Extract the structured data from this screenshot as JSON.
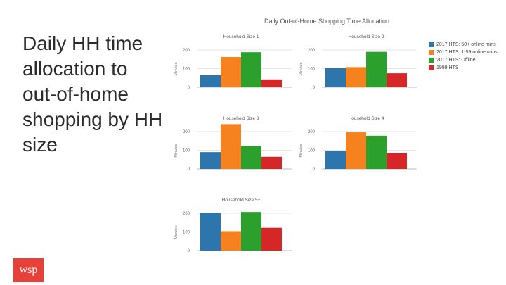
{
  "slide": {
    "title": "Daily HH time allocation to out-of-home shopping by HH size",
    "logo_text": "wsp"
  },
  "figure": {
    "title": "Daily Out-of-Home Shopping Time Allocation"
  },
  "legend": [
    {
      "label": "2017 HTS: 50+ online mins",
      "color": "#2c75ad"
    },
    {
      "label": "2017 HTS: 1-59 online mins",
      "color": "#f5821f"
    },
    {
      "label": "2017 HTS: Offline",
      "color": "#2ca02c"
    },
    {
      "label": "1999 HTS",
      "color": "#d62728"
    }
  ],
  "chart_data": [
    {
      "type": "bar",
      "title": "Household Size 1",
      "ylabel": "Minutes",
      "ylim": [
        0,
        200
      ],
      "yticks": [
        0,
        100,
        200
      ],
      "series": [
        {
          "name": "2017 HTS: 50+ online mins",
          "values": [
            65
          ]
        },
        {
          "name": "2017 HTS: 1-59 online mins",
          "values": [
            162
          ]
        },
        {
          "name": "2017 HTS: Offline",
          "values": [
            188
          ]
        },
        {
          "name": "1999 HTS",
          "values": [
            42
          ]
        }
      ]
    },
    {
      "type": "bar",
      "title": "Household Size 2",
      "ylabel": "Minutes",
      "ylim": [
        0,
        200
      ],
      "yticks": [
        0,
        100,
        200
      ],
      "series": [
        {
          "name": "2017 HTS: 50+ online mins",
          "values": [
            102
          ]
        },
        {
          "name": "2017 HTS: 1-59 online mins",
          "values": [
            108
          ]
        },
        {
          "name": "2017 HTS: Offline",
          "values": [
            190
          ]
        },
        {
          "name": "1999 HTS",
          "values": [
            75
          ]
        }
      ]
    },
    {
      "type": "bar",
      "title": "Household Size 3",
      "ylabel": "Minutes",
      "ylim": [
        0,
        200
      ],
      "yticks": [
        0,
        100,
        200
      ],
      "series": [
        {
          "name": "2017 HTS: 50+ online mins",
          "values": [
            90
          ]
        },
        {
          "name": "2017 HTS: 1-59 online mins",
          "values": [
            240
          ]
        },
        {
          "name": "2017 HTS: Offline",
          "values": [
            123
          ]
        },
        {
          "name": "1999 HTS",
          "values": [
            65
          ]
        }
      ]
    },
    {
      "type": "bar",
      "title": "Household Size 4",
      "ylabel": "Minutes",
      "ylim": [
        0,
        200
      ],
      "yticks": [
        0,
        100,
        200
      ],
      "series": [
        {
          "name": "2017 HTS: 50+ online mins",
          "values": [
            96
          ]
        },
        {
          "name": "2017 HTS: 1-59 online mins",
          "values": [
            196
          ]
        },
        {
          "name": "2017 HTS: Offline",
          "values": [
            178
          ]
        },
        {
          "name": "1999 HTS",
          "values": [
            85
          ]
        }
      ]
    },
    {
      "type": "bar",
      "title": "Household Size 5+",
      "ylabel": "Minutes",
      "ylim": [
        0,
        200
      ],
      "yticks": [
        0,
        100,
        200
      ],
      "series": [
        {
          "name": "2017 HTS: 50+ online mins",
          "values": [
            203
          ]
        },
        {
          "name": "2017 HTS: 1-59 online mins",
          "values": [
            104
          ]
        },
        {
          "name": "2017 HTS: Offline",
          "values": [
            207
          ]
        },
        {
          "name": "1999 HTS",
          "values": [
            122
          ]
        }
      ]
    }
  ]
}
